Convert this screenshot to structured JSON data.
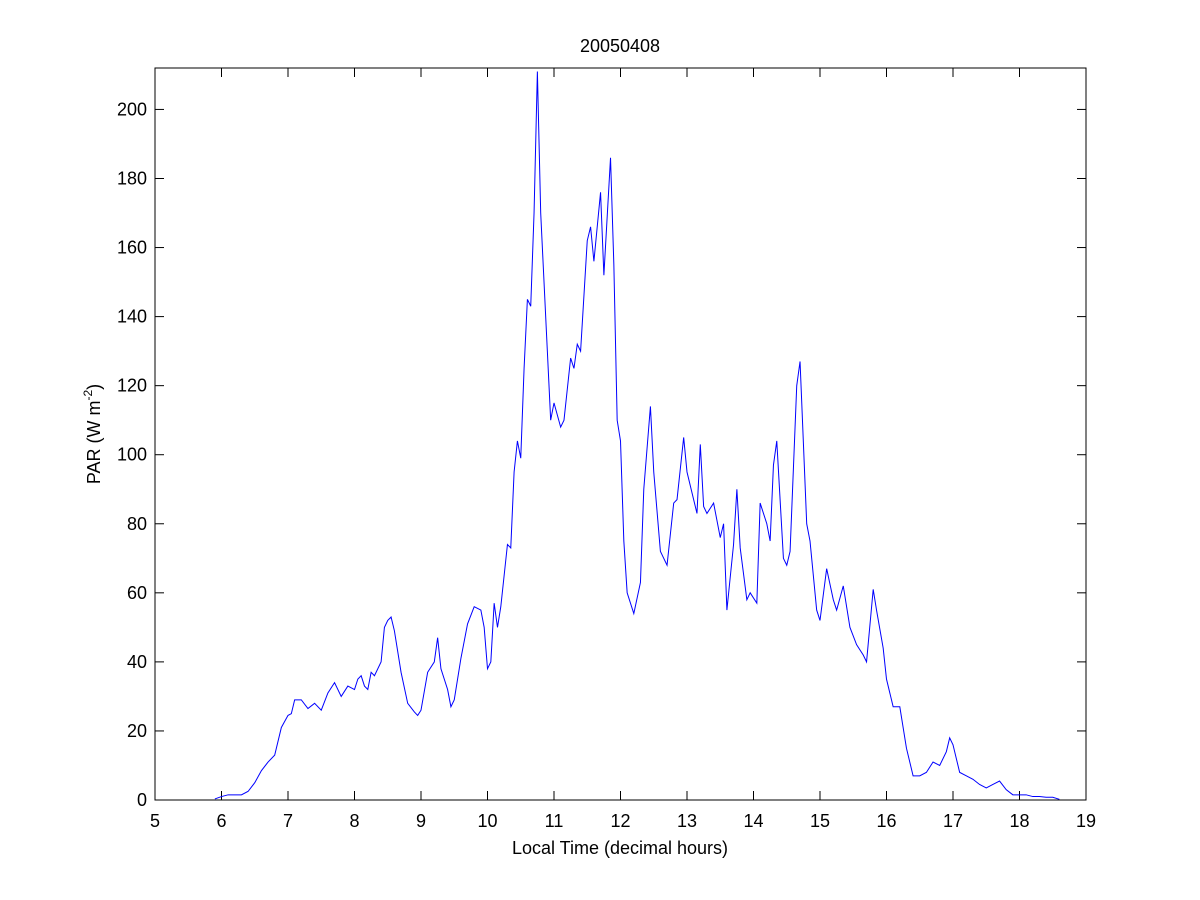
{
  "chart_data": {
    "type": "line",
    "title": "20050408",
    "xlabel": "Local Time (decimal hours)",
    "ylabel_parts": [
      "PAR (W m",
      "-2",
      ")"
    ],
    "xlim": [
      5,
      19
    ],
    "xticks": [
      5,
      6,
      7,
      8,
      9,
      10,
      11,
      12,
      13,
      14,
      15,
      16,
      17,
      18,
      19
    ],
    "ylim": [
      0,
      212
    ],
    "yticks": [
      0,
      20,
      40,
      60,
      80,
      100,
      120,
      140,
      160,
      180,
      200
    ],
    "grid": false,
    "series": [
      {
        "color": "#0000ff",
        "x": [
          5.9,
          6.0,
          6.1,
          6.2,
          6.3,
          6.4,
          6.5,
          6.6,
          6.7,
          6.8,
          6.9,
          7.0,
          7.05,
          7.1,
          7.2,
          7.3,
          7.4,
          7.5,
          7.6,
          7.7,
          7.8,
          7.9,
          8.0,
          8.05,
          8.1,
          8.15,
          8.2,
          8.25,
          8.3,
          8.4,
          8.45,
          8.5,
          8.55,
          8.6,
          8.7,
          8.8,
          8.9,
          8.95,
          9.0,
          9.1,
          9.2,
          9.25,
          9.3,
          9.4,
          9.45,
          9.5,
          9.6,
          9.7,
          9.8,
          9.9,
          9.95,
          10.0,
          10.05,
          10.1,
          10.15,
          10.2,
          10.3,
          10.35,
          10.4,
          10.45,
          10.5,
          10.55,
          10.6,
          10.65,
          10.7,
          10.75,
          10.8,
          10.9,
          10.95,
          11.0,
          11.1,
          11.15,
          11.25,
          11.3,
          11.35,
          11.4,
          11.5,
          11.55,
          11.6,
          11.7,
          11.75,
          11.85,
          11.9,
          11.95,
          12.0,
          12.05,
          12.1,
          12.2,
          12.3,
          12.35,
          12.45,
          12.5,
          12.6,
          12.7,
          12.8,
          12.85,
          12.95,
          13.0,
          13.1,
          13.15,
          13.2,
          13.25,
          13.3,
          13.4,
          13.5,
          13.55,
          13.6,
          13.7,
          13.75,
          13.8,
          13.9,
          13.95,
          14.05,
          14.1,
          14.2,
          14.25,
          14.3,
          14.35,
          14.45,
          14.5,
          14.55,
          14.65,
          14.7,
          14.8,
          14.85,
          14.95,
          15.0,
          15.1,
          15.2,
          15.25,
          15.35,
          15.45,
          15.55,
          15.65,
          15.7,
          15.8,
          15.85,
          15.95,
          16.0,
          16.1,
          16.2,
          16.3,
          16.4,
          16.5,
          16.6,
          16.7,
          16.8,
          16.9,
          16.95,
          17.0,
          17.1,
          17.2,
          17.3,
          17.4,
          17.5,
          17.6,
          17.7,
          17.8,
          17.9,
          18.0,
          18.1,
          18.2,
          18.3,
          18.4,
          18.5,
          18.6
        ],
        "values": [
          0.3,
          1,
          1.5,
          1.5,
          1.5,
          2.5,
          5,
          8.5,
          11,
          13,
          21,
          24.5,
          25,
          29,
          29,
          26.5,
          28,
          26,
          31,
          34,
          30,
          33,
          32,
          35,
          36,
          33,
          32,
          37,
          36,
          40,
          50,
          52,
          53,
          49,
          37,
          28,
          25.5,
          24.5,
          26,
          37,
          40,
          47,
          38,
          32,
          27,
          29,
          41,
          51,
          56,
          55,
          50,
          38,
          40,
          57,
          50,
          56,
          74,
          73,
          95,
          104,
          99,
          125,
          145,
          143,
          170,
          211,
          170,
          130,
          110,
          115,
          108,
          110,
          128,
          125,
          132,
          130,
          162,
          166,
          156,
          176,
          152,
          186,
          155,
          110,
          104,
          75,
          60,
          54,
          63,
          90,
          114,
          95,
          72,
          68,
          86,
          87,
          105,
          95,
          87,
          83,
          103,
          85,
          83,
          86,
          76,
          80,
          55,
          74,
          90,
          73,
          58,
          60,
          57,
          86,
          80,
          75,
          97,
          104,
          70,
          68,
          72,
          120,
          127,
          80,
          75,
          55,
          52,
          67,
          58,
          55,
          62,
          50,
          45,
          42,
          40,
          61,
          55,
          44,
          35,
          27,
          27,
          15,
          7,
          7,
          8,
          11,
          10,
          14,
          18,
          16,
          8,
          7,
          6,
          4.5,
          3.5,
          4.5,
          5.5,
          3,
          1.5,
          1.5,
          1.5,
          1,
          1,
          0.8,
          0.8,
          0.2
        ]
      }
    ]
  }
}
